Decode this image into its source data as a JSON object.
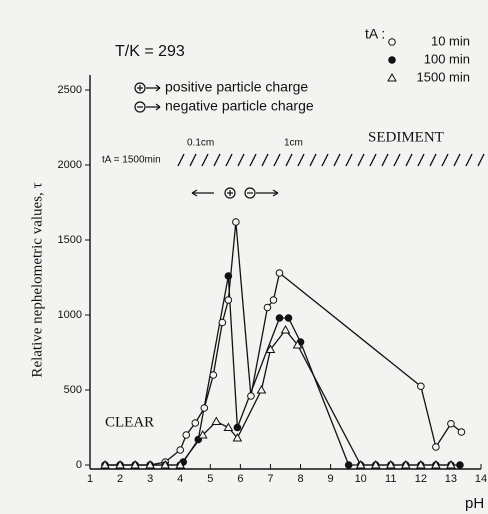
{
  "chart_data": {
    "type": "line",
    "annotation_temp": "T/K = 293",
    "legend_title": "tA :",
    "positive_label": "positive particle charge",
    "negative_label": "negative particle charge",
    "sediment_label": "SEDIMENT",
    "clear_label": "CLEAR",
    "scale_small": "0.1cm",
    "scale_large": "1cm",
    "sediment_time": "tA = 1500min",
    "ylabel": "Relative nephelometric values, τ",
    "xlabel": "pH",
    "xlim": [
      1,
      14
    ],
    "xticks": [
      1,
      2,
      3,
      4,
      5,
      6,
      7,
      8,
      9,
      10,
      11,
      12,
      13,
      14
    ],
    "ylim": [
      0,
      2600
    ],
    "yticks": [
      0,
      500,
      1000,
      1500,
      2000,
      2500
    ],
    "series": [
      {
        "name": "10 min",
        "color": "#111",
        "marker": "circle-open",
        "x": [
          1.5,
          2,
          2.5,
          3,
          3.5,
          4,
          4.2,
          4.5,
          4.8,
          5.1,
          5.4,
          5.6,
          5.85,
          6.35,
          6.9,
          7.1,
          7.3,
          12.0,
          12.5,
          13.0,
          13.35
        ],
        "values": [
          0,
          0,
          0,
          0,
          20,
          100,
          200,
          280,
          380,
          600,
          950,
          1100,
          1620,
          460,
          1050,
          1100,
          1280,
          525,
          120,
          275,
          220
        ]
      },
      {
        "name": "100 min",
        "color": "#111",
        "marker": "circle-filled",
        "x": [
          1.5,
          2,
          2.5,
          3,
          3.5,
          4,
          4.1,
          4.6,
          5.6,
          5.9,
          7.3,
          7.6,
          8.0,
          9.6,
          10,
          10.5,
          11,
          11.5,
          12,
          12.5,
          13,
          13.3
        ],
        "values": [
          0,
          0,
          0,
          0,
          0,
          0,
          20,
          170,
          1260,
          250,
          980,
          980,
          820,
          0,
          0,
          0,
          0,
          0,
          0,
          0,
          0,
          0
        ]
      },
      {
        "name": "1500 min",
        "color": "#111",
        "marker": "triangle-open",
        "x": [
          1.5,
          2,
          2.5,
          3,
          3.5,
          4,
          4.75,
          5.2,
          5.6,
          5.9,
          6.7,
          7.0,
          7.5,
          7.9,
          10,
          10.5,
          11,
          11.5,
          12,
          12.5,
          13
        ],
        "values": [
          0,
          0,
          0,
          0,
          0,
          0,
          200,
          290,
          250,
          180,
          500,
          770,
          900,
          800,
          0,
          0,
          0,
          0,
          0,
          0,
          0
        ]
      }
    ]
  }
}
